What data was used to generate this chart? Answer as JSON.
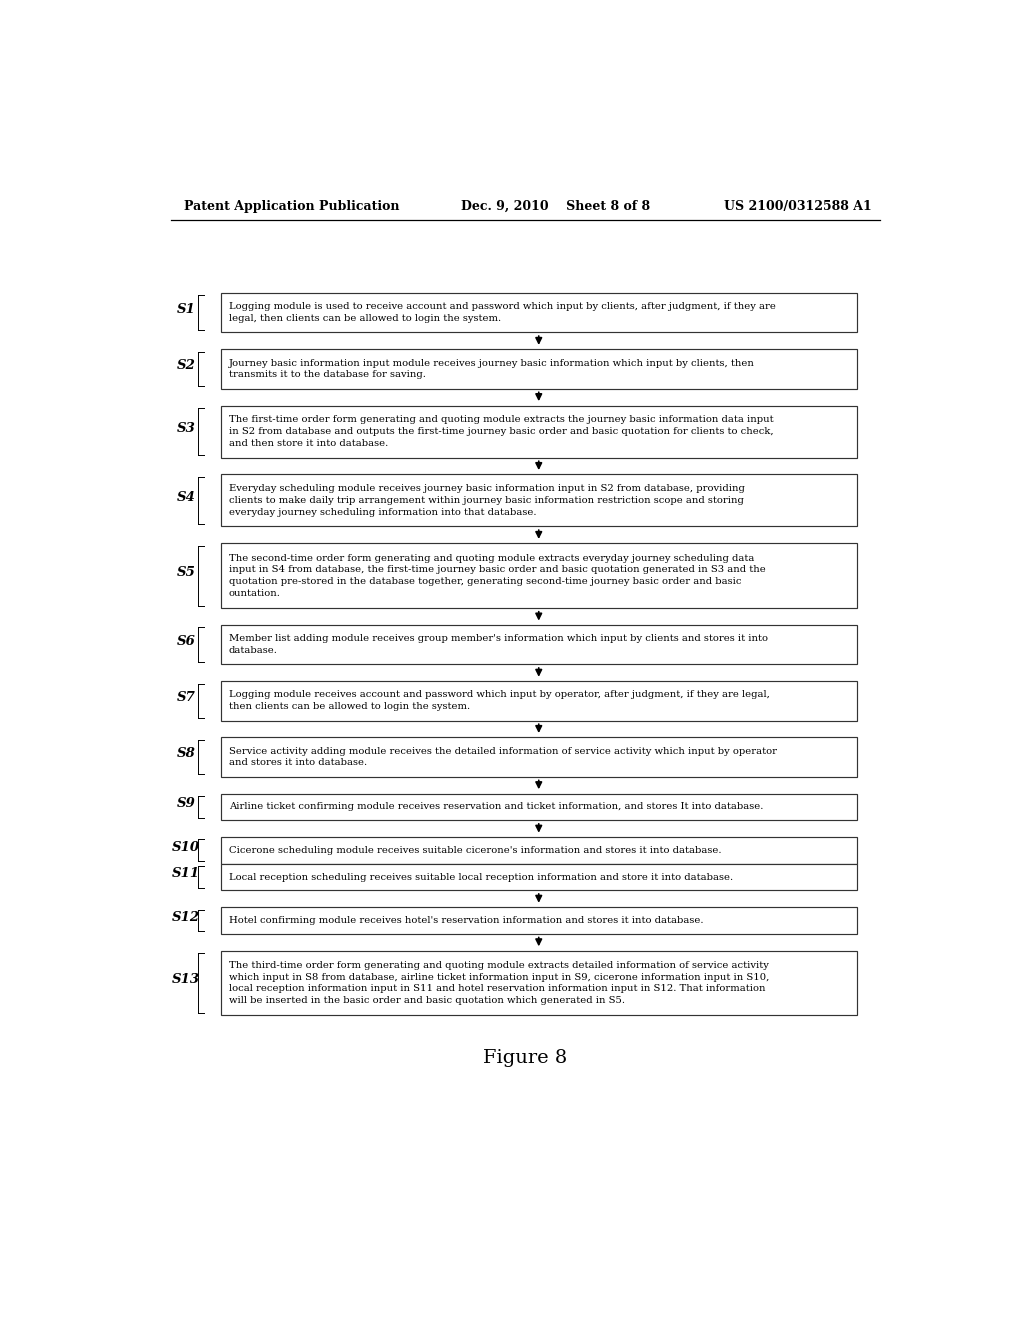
{
  "bg_color": "#ffffff",
  "header_left": "Patent Application Publication",
  "header_mid": "Dec. 9, 2010    Sheet 8 of 8",
  "header_right": "US 2100/0312588 A1",
  "footer": "Figure 8",
  "steps": [
    {
      "label": "S1",
      "text": "Logging module is used to receive account and password which input by clients, after judgment, if they are\nlegal, then clients can be allowed to login the system.",
      "nlines": 2,
      "arrow_before": false
    },
    {
      "label": "S2",
      "text": "Journey basic information input module receives journey basic information which input by clients, then\ntransmits it to the database for saving.",
      "nlines": 2,
      "arrow_before": true
    },
    {
      "label": "S3",
      "text": "The first-time order form generating and quoting module extracts the journey basic information data input\nin S2 from database and outputs the first-time journey basic order and basic quotation for clients to check,\nand then store it into database.",
      "nlines": 3,
      "arrow_before": true
    },
    {
      "label": "S4",
      "text": "Everyday scheduling module receives journey basic information input in S2 from database, providing\nclients to make daily trip arrangement within journey basic information restriction scope and storing\neveryday journey scheduling information into that database.",
      "nlines": 3,
      "arrow_before": true
    },
    {
      "label": "S5",
      "text": "The second-time order form generating and quoting module extracts everyday journey scheduling data\ninput in S4 from database, the first-time journey basic order and basic quotation generated in S3 and the\nquotation pre-stored in the database together, generating second-time journey basic order and basic\nountation.",
      "nlines": 4,
      "arrow_before": true
    },
    {
      "label": "S6",
      "text": "Member list adding module receives group member's information which input by clients and stores it into\ndatabase.",
      "nlines": 2,
      "arrow_before": true
    },
    {
      "label": "S7",
      "text": "Logging module receives account and password which input by operator, after judgment, if they are legal,\nthen clients can be allowed to login the system.",
      "nlines": 2,
      "arrow_before": true
    },
    {
      "label": "S8",
      "text": "Service activity adding module receives the detailed information of service activity which input by operator\nand stores it into database.",
      "nlines": 2,
      "arrow_before": true
    },
    {
      "label": "S9",
      "text": "Airline ticket confirming module receives reservation and ticket information, and stores It into database.",
      "nlines": 1,
      "arrow_before": true
    },
    {
      "label": "S10",
      "text": "Cicerone scheduling module receives suitable cicerone's information and stores it into database.",
      "nlines": 1,
      "arrow_before": true
    },
    {
      "label": "S11",
      "text": "Local reception scheduling receives suitable local reception information and store it into database.",
      "nlines": 1,
      "arrow_before": false
    },
    {
      "label": "S12",
      "text": "Hotel confirming module receives hotel's reservation information and stores it into database.",
      "nlines": 1,
      "arrow_before": true
    },
    {
      "label": "S13",
      "text": "The third-time order form generating and quoting module extracts detailed information of service activity\nwhich input in S8 from database, airline ticket information input in S9, cicerone information input in S10,\nlocal reception information input in S11 and hotel reservation information input in S12. That information\nwill be inserted in the basic order and basic quotation which generated in S5.",
      "nlines": 4,
      "arrow_before": true
    }
  ]
}
